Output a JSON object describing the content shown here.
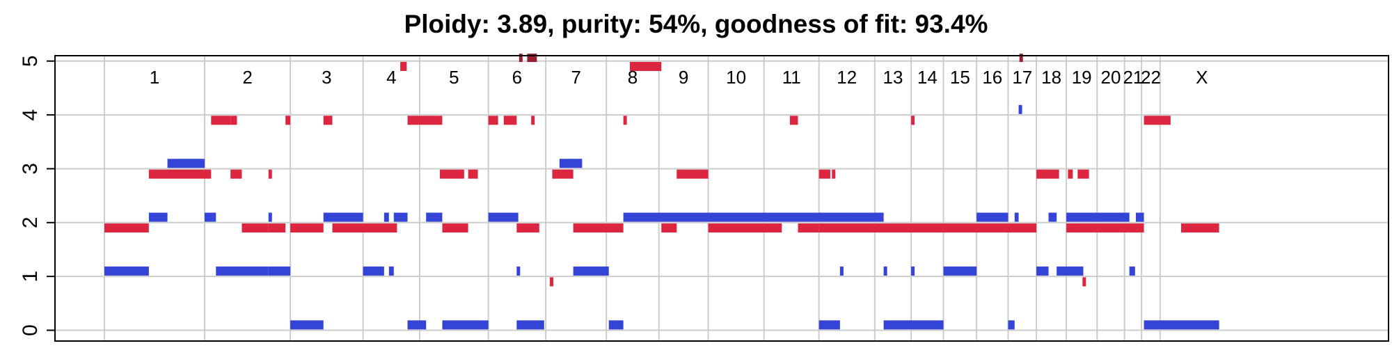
{
  "chart_data": {
    "type": "segment",
    "title": "Ploidy: 3.89, purity: 54%, goodness of fit: 93.4%",
    "xlabel": "",
    "ylabel": "",
    "xlim": [
      0,
      15.24
    ],
    "ylim": [
      -0.2,
      5.1
    ],
    "yticks": [
      0,
      1,
      2,
      3,
      4,
      5
    ],
    "grid": true,
    "colors": {
      "major": "#dc2640",
      "minor": "#3344d6",
      "clipped": "#96202e"
    },
    "chromosomes": [
      {
        "name": "1",
        "start": 0.0,
        "end": 1.24
      },
      {
        "name": "2",
        "start": 1.24,
        "end": 2.3
      },
      {
        "name": "3",
        "start": 2.3,
        "end": 3.2
      },
      {
        "name": "4",
        "start": 3.2,
        "end": 3.9
      },
      {
        "name": "5",
        "start": 3.9,
        "end": 4.75
      },
      {
        "name": "6",
        "start": 4.75,
        "end": 5.46
      },
      {
        "name": "7",
        "start": 5.46,
        "end": 6.21
      },
      {
        "name": "8",
        "start": 6.21,
        "end": 6.86
      },
      {
        "name": "9",
        "start": 6.86,
        "end": 7.47
      },
      {
        "name": "10",
        "start": 7.47,
        "end": 8.16
      },
      {
        "name": "11",
        "start": 8.16,
        "end": 8.84
      },
      {
        "name": "12",
        "start": 8.84,
        "end": 9.53
      },
      {
        "name": "13",
        "start": 9.53,
        "end": 9.98
      },
      {
        "name": "14",
        "start": 9.98,
        "end": 10.38
      },
      {
        "name": "15",
        "start": 10.38,
        "end": 10.79
      },
      {
        "name": "16",
        "start": 10.79,
        "end": 11.18
      },
      {
        "name": "17",
        "start": 11.18,
        "end": 11.53
      },
      {
        "name": "18",
        "start": 11.53,
        "end": 11.9
      },
      {
        "name": "19",
        "start": 11.9,
        "end": 12.28
      },
      {
        "name": "20",
        "start": 12.28,
        "end": 12.62
      },
      {
        "name": "21",
        "start": 12.62,
        "end": 12.83
      },
      {
        "name": "22",
        "start": 12.83,
        "end": 13.06
      },
      {
        "name": "X",
        "start": 13.06,
        "end": 15.24
      }
    ],
    "series": [
      {
        "name": "",
        "color": "#dc2640",
        "segments": [
          [
            0.0,
            0.55,
            1.9
          ],
          [
            0.55,
            1.32,
            2.9
          ],
          [
            1.32,
            1.56,
            3.9
          ],
          [
            1.56,
            1.64,
            3.9
          ],
          [
            1.56,
            1.7,
            2.9
          ],
          [
            1.7,
            2.03,
            1.9
          ],
          [
            2.03,
            2.05,
            2.9
          ],
          [
            2.03,
            2.24,
            1.9
          ],
          [
            2.24,
            2.3,
            3.9
          ],
          [
            2.3,
            2.71,
            1.9
          ],
          [
            2.71,
            2.82,
            3.9
          ],
          [
            2.82,
            3.62,
            1.9
          ],
          [
            3.66,
            3.74,
            4.9
          ],
          [
            3.75,
            4.18,
            3.9
          ],
          [
            4.15,
            4.45,
            2.9
          ],
          [
            4.18,
            4.5,
            1.9
          ],
          [
            4.5,
            4.62,
            2.9
          ],
          [
            4.75,
            4.87,
            3.9
          ],
          [
            4.94,
            5.1,
            3.9
          ],
          [
            5.1,
            5.38,
            1.9
          ],
          [
            5.28,
            5.31,
            3.9
          ],
          [
            5.51,
            5.55,
            0.9
          ],
          [
            5.54,
            5.8,
            2.9
          ],
          [
            5.8,
            6.42,
            1.9
          ],
          [
            6.42,
            6.46,
            3.9
          ],
          [
            6.5,
            6.89,
            4.9
          ],
          [
            6.89,
            7.08,
            1.9
          ],
          [
            7.08,
            7.47,
            2.9
          ],
          [
            7.47,
            8.38,
            1.9
          ],
          [
            8.48,
            8.58,
            3.9
          ],
          [
            8.58,
            8.84,
            1.9
          ],
          [
            8.84,
            8.98,
            2.9
          ],
          [
            9.0,
            9.02,
            2.9
          ],
          [
            8.84,
            10.38,
            1.9
          ],
          [
            9.98,
            10.02,
            3.9
          ],
          [
            10.38,
            11.53,
            1.9
          ],
          [
            11.53,
            11.57,
            2.9
          ],
          [
            11.57,
            11.81,
            2.9
          ],
          [
            11.92,
            11.98,
            2.9
          ],
          [
            12.04,
            12.18,
            2.9
          ],
          [
            11.98,
            12.04,
            1.9
          ],
          [
            12.1,
            12.13,
            0.9
          ],
          [
            11.9,
            12.86,
            1.9
          ],
          [
            12.86,
            13.19,
            3.9
          ],
          [
            13.32,
            13.79,
            1.9
          ]
        ]
      },
      {
        "name": "",
        "color": "#3344d6",
        "segments": [
          [
            0.0,
            0.55,
            1.1
          ],
          [
            0.55,
            0.78,
            2.1
          ],
          [
            0.78,
            1.24,
            3.1
          ],
          [
            1.24,
            1.38,
            2.1
          ],
          [
            1.38,
            2.03,
            1.1
          ],
          [
            2.03,
            2.06,
            2.1
          ],
          [
            2.03,
            2.3,
            1.1
          ],
          [
            2.3,
            2.71,
            0.1
          ],
          [
            2.71,
            3.2,
            2.1
          ],
          [
            3.2,
            3.46,
            1.1
          ],
          [
            3.46,
            3.52,
            2.1
          ],
          [
            3.52,
            3.58,
            1.1
          ],
          [
            3.58,
            3.75,
            2.1
          ],
          [
            3.75,
            3.98,
            0.1
          ],
          [
            3.98,
            4.18,
            2.1
          ],
          [
            4.18,
            4.75,
            0.1
          ],
          [
            4.75,
            5.12,
            2.1
          ],
          [
            5.1,
            5.14,
            1.1
          ],
          [
            5.1,
            5.44,
            0.1
          ],
          [
            5.63,
            5.91,
            3.1
          ],
          [
            5.8,
            6.24,
            1.1
          ],
          [
            6.24,
            6.42,
            0.1
          ],
          [
            6.42,
            7.47,
            2.1
          ],
          [
            7.47,
            9.2,
            2.1
          ],
          [
            8.84,
            9.1,
            0.1
          ],
          [
            9.1,
            9.14,
            1.1
          ],
          [
            9.2,
            9.64,
            2.1
          ],
          [
            9.64,
            9.68,
            1.1
          ],
          [
            9.64,
            10.38,
            0.1
          ],
          [
            9.98,
            10.02,
            1.1
          ],
          [
            10.38,
            10.79,
            1.1
          ],
          [
            10.79,
            11.18,
            2.1
          ],
          [
            11.18,
            11.26,
            0.1
          ],
          [
            11.26,
            11.31,
            2.1
          ],
          [
            11.31,
            11.35,
            4.1
          ],
          [
            11.53,
            11.68,
            1.1
          ],
          [
            11.68,
            11.78,
            2.1
          ],
          [
            11.78,
            12.11,
            1.1
          ],
          [
            11.9,
            12.68,
            2.1
          ],
          [
            12.68,
            12.75,
            1.1
          ],
          [
            12.76,
            12.86,
            2.1
          ],
          [
            12.86,
            13.79,
            0.1
          ]
        ]
      },
      {
        "name": "",
        "color": "#96202e",
        "segments": [
          [
            5.13,
            5.17,
            5.06
          ],
          [
            5.23,
            5.35,
            5.06
          ],
          [
            11.32,
            11.35,
            5.06
          ]
        ]
      }
    ]
  }
}
